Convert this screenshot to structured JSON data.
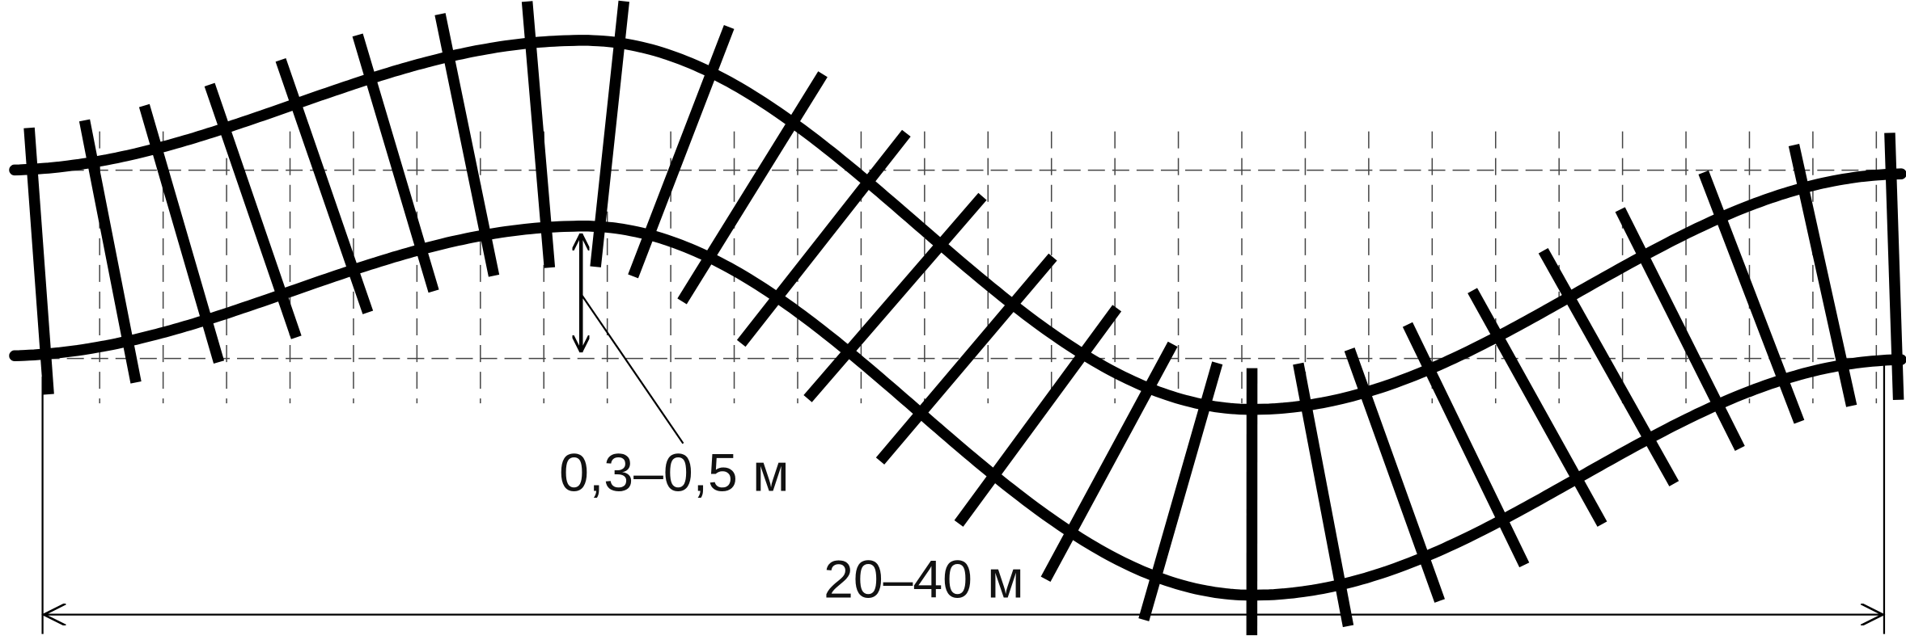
{
  "labels": {
    "deviation": "0,3–0,5 м",
    "length": "20–40 м"
  }
}
